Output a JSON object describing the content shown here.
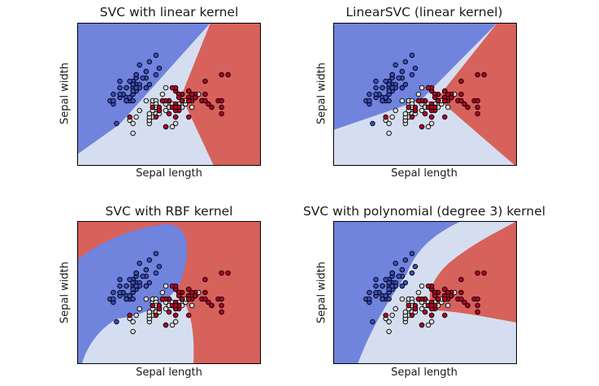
{
  "colors": {
    "blue_region": "#7083dd",
    "light_region": "#d5def0",
    "red_region": "#d6625b",
    "blue_point": "#3b4cc0",
    "light_point": "#dddddd",
    "red_point": "#b40426",
    "frame": "#000000"
  },
  "chart_data": [
    {
      "type": "scatter",
      "title": "SVC with linear kernel",
      "xlabel": "Sepal length",
      "ylabel": "Sepal width",
      "xlim": [
        3.3,
        8.9
      ],
      "ylim": [
        1.0,
        5.4
      ],
      "kernel": "linear",
      "grid": false
    },
    {
      "type": "scatter",
      "title": "LinearSVC (linear kernel)",
      "xlabel": "Sepal length",
      "ylabel": "Sepal width",
      "xlim": [
        3.3,
        8.9
      ],
      "ylim": [
        1.0,
        5.4
      ],
      "kernel": "linearsvc",
      "grid": false
    },
    {
      "type": "scatter",
      "title": "SVC with RBF kernel",
      "xlabel": "Sepal length",
      "ylabel": "Sepal width",
      "xlim": [
        3.3,
        8.9
      ],
      "ylim": [
        1.0,
        5.4
      ],
      "kernel": "rbf",
      "grid": false
    },
    {
      "type": "scatter",
      "title": "SVC with polynomial (degree 3) kernel",
      "xlabel": "Sepal length",
      "ylabel": "Sepal width",
      "xlim": [
        3.3,
        8.9
      ],
      "ylim": [
        1.0,
        5.4
      ],
      "kernel": "poly",
      "grid": false
    }
  ],
  "points": {
    "setosa": [
      [
        5.1,
        3.5
      ],
      [
        4.9,
        3.0
      ],
      [
        4.7,
        3.2
      ],
      [
        4.6,
        3.1
      ],
      [
        5.0,
        3.6
      ],
      [
        5.4,
        3.9
      ],
      [
        4.6,
        3.4
      ],
      [
        5.0,
        3.4
      ],
      [
        4.4,
        2.9
      ],
      [
        4.9,
        3.1
      ],
      [
        5.4,
        3.7
      ],
      [
        4.8,
        3.4
      ],
      [
        4.8,
        3.0
      ],
      [
        4.3,
        3.0
      ],
      [
        5.8,
        4.0
      ],
      [
        5.7,
        4.4
      ],
      [
        5.4,
        3.9
      ],
      [
        5.1,
        3.5
      ],
      [
        5.7,
        3.8
      ],
      [
        5.1,
        3.8
      ],
      [
        5.4,
        3.4
      ],
      [
        5.1,
        3.7
      ],
      [
        4.6,
        3.6
      ],
      [
        5.1,
        3.3
      ],
      [
        4.8,
        3.4
      ],
      [
        5.0,
        3.0
      ],
      [
        5.0,
        3.4
      ],
      [
        5.2,
        3.5
      ],
      [
        5.2,
        3.4
      ],
      [
        4.7,
        3.2
      ],
      [
        4.8,
        3.1
      ],
      [
        5.4,
        3.4
      ],
      [
        5.2,
        4.1
      ],
      [
        5.5,
        4.2
      ],
      [
        4.9,
        3.1
      ],
      [
        5.0,
        3.2
      ],
      [
        5.5,
        3.5
      ],
      [
        4.9,
        3.6
      ],
      [
        4.4,
        3.0
      ],
      [
        5.1,
        3.4
      ],
      [
        5.0,
        3.5
      ],
      [
        4.5,
        2.3
      ],
      [
        4.4,
        3.2
      ],
      [
        5.0,
        3.5
      ],
      [
        5.1,
        3.8
      ],
      [
        4.8,
        3.0
      ],
      [
        5.1,
        3.8
      ],
      [
        4.6,
        3.2
      ],
      [
        5.3,
        3.7
      ],
      [
        5.0,
        3.3
      ]
    ],
    "versicolor": [
      [
        7.0,
        3.2
      ],
      [
        6.4,
        3.2
      ],
      [
        6.9,
        3.1
      ],
      [
        5.5,
        2.3
      ],
      [
        6.5,
        2.8
      ],
      [
        5.7,
        2.8
      ],
      [
        6.3,
        3.3
      ],
      [
        4.9,
        2.4
      ],
      [
        6.6,
        2.9
      ],
      [
        5.2,
        2.7
      ],
      [
        5.0,
        2.0
      ],
      [
        5.9,
        3.0
      ],
      [
        6.0,
        2.2
      ],
      [
        6.1,
        2.9
      ],
      [
        5.6,
        2.9
      ],
      [
        6.7,
        3.1
      ],
      [
        5.6,
        3.0
      ],
      [
        5.8,
        2.7
      ],
      [
        6.2,
        2.2
      ],
      [
        5.6,
        2.5
      ],
      [
        5.9,
        3.2
      ],
      [
        6.1,
        2.8
      ],
      [
        6.3,
        2.5
      ],
      [
        6.1,
        2.8
      ],
      [
        6.4,
        2.9
      ],
      [
        6.6,
        3.0
      ],
      [
        6.8,
        2.8
      ],
      [
        6.7,
        3.0
      ],
      [
        6.0,
        2.9
      ],
      [
        5.7,
        2.6
      ],
      [
        5.5,
        2.4
      ],
      [
        5.5,
        2.4
      ],
      [
        5.8,
        2.7
      ],
      [
        6.0,
        2.7
      ],
      [
        5.4,
        3.0
      ],
      [
        6.0,
        3.4
      ],
      [
        6.7,
        3.1
      ],
      [
        6.3,
        2.3
      ],
      [
        5.6,
        3.0
      ],
      [
        5.5,
        2.5
      ],
      [
        5.5,
        2.6
      ],
      [
        6.1,
        3.0
      ],
      [
        5.8,
        2.6
      ],
      [
        5.0,
        2.3
      ],
      [
        5.6,
        2.7
      ],
      [
        5.7,
        3.0
      ],
      [
        5.7,
        2.9
      ],
      [
        6.2,
        2.9
      ],
      [
        5.1,
        2.5
      ],
      [
        5.7,
        2.8
      ]
    ],
    "virginica": [
      [
        6.3,
        3.3
      ],
      [
        5.8,
        2.7
      ],
      [
        7.1,
        3.0
      ],
      [
        6.3,
        2.9
      ],
      [
        6.5,
        3.0
      ],
      [
        7.6,
        3.0
      ],
      [
        4.9,
        2.5
      ],
      [
        7.3,
        2.9
      ],
      [
        6.7,
        2.5
      ],
      [
        7.2,
        3.6
      ],
      [
        6.5,
        3.2
      ],
      [
        6.4,
        2.7
      ],
      [
        6.8,
        3.0
      ],
      [
        5.7,
        2.5
      ],
      [
        5.8,
        2.8
      ],
      [
        6.4,
        3.2
      ],
      [
        6.5,
        3.0
      ],
      [
        7.7,
        3.8
      ],
      [
        7.7,
        2.6
      ],
      [
        6.0,
        2.2
      ],
      [
        6.9,
        3.2
      ],
      [
        5.6,
        2.8
      ],
      [
        7.7,
        2.8
      ],
      [
        6.3,
        2.7
      ],
      [
        6.7,
        3.3
      ],
      [
        7.2,
        3.2
      ],
      [
        6.2,
        2.8
      ],
      [
        6.1,
        3.0
      ],
      [
        6.4,
        2.8
      ],
      [
        7.2,
        3.0
      ],
      [
        7.4,
        2.8
      ],
      [
        7.9,
        3.8
      ],
      [
        6.4,
        2.8
      ],
      [
        6.3,
        2.8
      ],
      [
        6.1,
        2.6
      ],
      [
        7.7,
        3.0
      ],
      [
        6.3,
        3.4
      ],
      [
        6.4,
        3.1
      ],
      [
        6.0,
        3.0
      ],
      [
        6.9,
        3.1
      ],
      [
        6.7,
        3.1
      ],
      [
        6.9,
        3.1
      ],
      [
        5.8,
        2.7
      ],
      [
        6.8,
        3.2
      ],
      [
        6.7,
        3.3
      ],
      [
        6.7,
        3.0
      ],
      [
        6.3,
        2.5
      ],
      [
        6.5,
        3.0
      ],
      [
        6.2,
        3.4
      ],
      [
        5.9,
        3.0
      ]
    ]
  }
}
